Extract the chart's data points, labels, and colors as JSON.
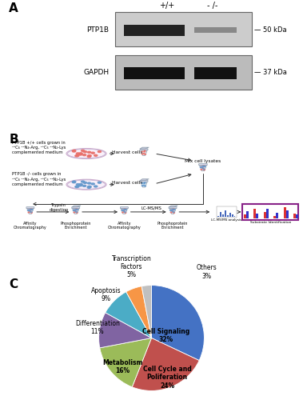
{
  "pie_labels_short": [
    "Cell Signaling",
    "Cell Cycle and\nPoliferation",
    "Metabolism",
    "Differentiation",
    "Apoptosis",
    "Transcription\nFactors",
    "Others"
  ],
  "pie_pcts": [
    "32%",
    "24%",
    "16%",
    "11%",
    "9%",
    "5%",
    "3%"
  ],
  "pie_values": [
    32,
    24,
    16,
    11,
    9,
    5,
    3
  ],
  "pie_colors": [
    "#4472C4",
    "#C0504D",
    "#9BBB59",
    "#8064A2",
    "#4BACC6",
    "#F79646",
    "#C0C0C0"
  ],
  "western_proteins": [
    "PTP1B",
    "GAPDH"
  ],
  "western_sizes": [
    "50 kDa",
    "37 kDa"
  ],
  "western_cols": [
    "+/+",
    "- /-"
  ],
  "cell_color_red": "#E8706A",
  "cell_color_blue": "#6699CC",
  "tube_body_color": "#E8F4F8",
  "background_color": "#FFFFFF",
  "label_A": "A",
  "label_B": "B",
  "label_C": "C",
  "light_text": "PTP1B +/+ cells grown in\n¹³C₆ ¹⁴N₄-Arg, ¹³C₆ ¹⁴N₂-Lys\ncomplemented medium",
  "heavy_text": "PTP1B -/- cells grown in\n¹³C₆ ¹⁴N₄-Arg, ¹³C₆ ¹⁴N₂-Lys\ncomplemented medium",
  "harvest_text": "Harvest cells",
  "mix_text": "Mix cell lysates",
  "trypsin_text": "Trypsin\ndigestion",
  "lcms_text": "LC-MS/MS",
  "lcms_analysis_text": "LC-MS/MS analysis",
  "affinity1_text": "Affinity\nChromatography",
  "phospho1_text": "Phosphoprotein\nEnrichment",
  "affinity2_text": "Affinity\nChromatography",
  "phospho2_text": "Phosphoprotein\nEnrichment",
  "substrate_text": "Substrate Identification"
}
